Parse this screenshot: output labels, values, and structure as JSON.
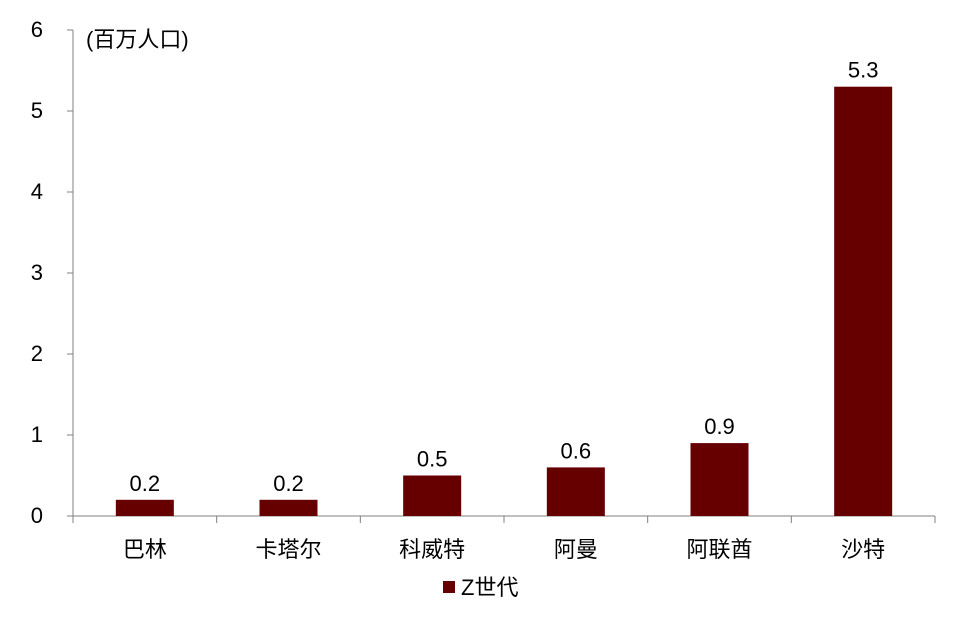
{
  "chart_data": {
    "type": "bar",
    "title": "",
    "unit_label": "(百万人口)",
    "categories": [
      "巴林",
      "卡塔尔",
      "科威特",
      "阿曼",
      "阿联酋",
      "沙特"
    ],
    "series": [
      {
        "name": "Z世代",
        "values": [
          0.2,
          0.2,
          0.5,
          0.6,
          0.9,
          5.3
        ],
        "data_labels": [
          "0.2",
          "0.2",
          "0.5",
          "0.6",
          "0.9",
          "5.3"
        ],
        "color": "#660000"
      }
    ],
    "ylim": [
      0,
      6
    ],
    "yticks": [
      "0",
      "1",
      "2",
      "3",
      "4",
      "5",
      "6"
    ],
    "grid": false,
    "legend_position": "bottom-center"
  }
}
